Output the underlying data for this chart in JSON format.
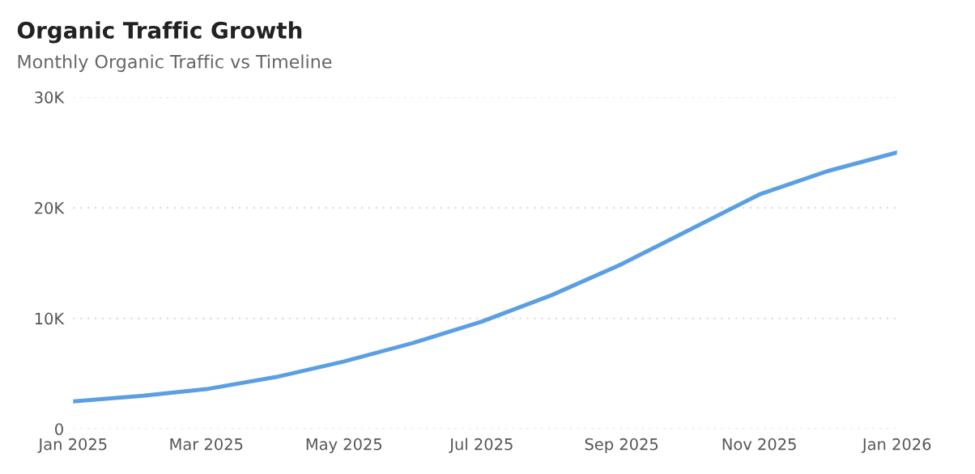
{
  "chart_data": {
    "type": "line",
    "title": "Organic Traffic Growth",
    "subtitle": "Monthly Organic Traffic vs Timeline",
    "x": [
      "2025-01",
      "2025-02",
      "2025-03",
      "2025-04",
      "2025-05",
      "2025-06",
      "2025-07",
      "2025-08",
      "2025-09",
      "2025-10",
      "2025-11",
      "2025-12",
      "2026-01"
    ],
    "series": [
      {
        "color": "#5b9fe3",
        "values": [
          2500,
          3000,
          3600,
          4700,
          6100,
          7800,
          9700,
          12100,
          14900,
          18000,
          21200,
          23300,
          25000
        ]
      }
    ],
    "xlim": [
      "2025-01",
      "2026-01"
    ],
    "xticks": [
      {
        "value": "2025-01",
        "label": "Jan 2025"
      },
      {
        "value": "2025-03",
        "label": "Mar 2025"
      },
      {
        "value": "2025-05",
        "label": "May 2025"
      },
      {
        "value": "2025-07",
        "label": "Jul 2025"
      },
      {
        "value": "2025-09",
        "label": "Sep 2025"
      },
      {
        "value": "2025-11",
        "label": "Nov 2025"
      },
      {
        "value": "2026-01",
        "label": "Jan 2026"
      }
    ],
    "ylim": [
      0,
      30000
    ],
    "yticks": [
      {
        "value": 0,
        "label": "0"
      },
      {
        "value": 10000,
        "label": "10K"
      },
      {
        "value": 20000,
        "label": "20K"
      },
      {
        "value": 30000,
        "label": "30K"
      }
    ],
    "grid": "y",
    "marker": "none",
    "line_style": "solid"
  }
}
